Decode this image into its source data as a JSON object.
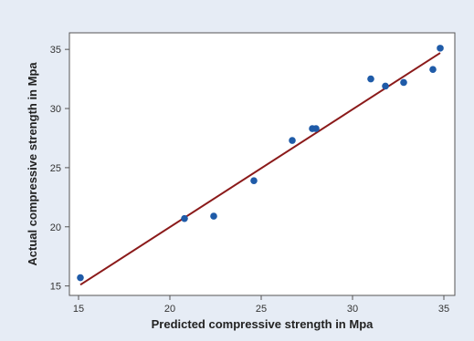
{
  "chart_data": {
    "type": "scatter",
    "xlabel": "Predicted compressive strength in Mpa",
    "ylabel": "Actual compressive strength in Mpa",
    "xlim": [
      14.5,
      35.6
    ],
    "ylim": [
      14.2,
      36.4
    ],
    "x_ticks": [
      15,
      20,
      25,
      30,
      35
    ],
    "y_ticks": [
      15,
      20,
      25,
      30,
      35
    ],
    "x_tick_labels": [
      "15",
      "20",
      "25",
      "30",
      "35"
    ],
    "y_tick_labels": [
      "15",
      "20",
      "25",
      "30",
      "35"
    ],
    "grid": false,
    "legend": "none",
    "series": [
      {
        "type": "scatter",
        "x": [
          15.1,
          20.8,
          22.4,
          24.6,
          26.7,
          27.8,
          28.0,
          31.0,
          31.8,
          32.8,
          34.4,
          34.8
        ],
        "y": [
          15.7,
          20.7,
          20.9,
          23.9,
          27.3,
          28.3,
          28.3,
          32.5,
          31.9,
          32.2,
          33.3,
          35.1
        ],
        "color": "#1f5ba8"
      },
      {
        "type": "line",
        "x": [
          15.1,
          34.8
        ],
        "y": [
          15.1,
          34.7
        ],
        "color": "#8b1a1a"
      }
    ],
    "colors": {
      "frame_background": "#e6ecf5",
      "plot_background": "#ffffff",
      "axis": "#555555"
    }
  }
}
